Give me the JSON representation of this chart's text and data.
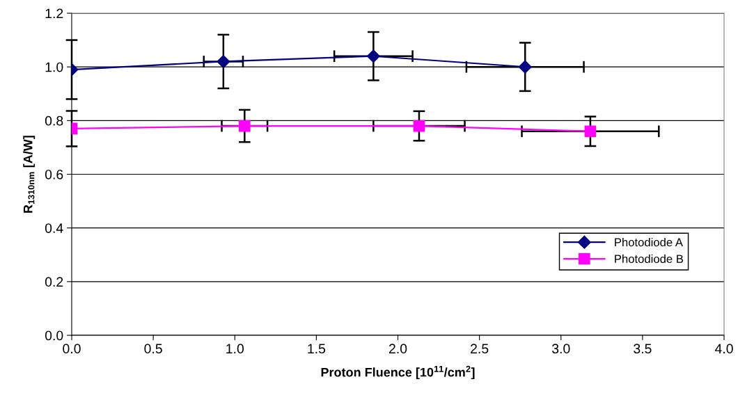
{
  "chart_data": {
    "type": "line",
    "xlabel": "Proton Fluence [10$^{11}$/cm$^{2}$]",
    "ylabel": "R$_{1310nm}$ [A/W]",
    "series": [
      {
        "name": "Photodiode A",
        "color": "#000080",
        "marker": "diamond",
        "x": [
          0.0,
          0.93,
          1.85,
          2.78
        ],
        "values": [
          0.99,
          1.02,
          1.04,
          1.0
        ],
        "errors": [
          0.11,
          0.1,
          0.09,
          0.09
        ],
        "xerrors": [
          null,
          0.12,
          0.24,
          0.36
        ]
      },
      {
        "name": "Photodiode B",
        "color": "#ff00ff",
        "marker": "square",
        "x": [
          0.0,
          1.06,
          2.13,
          3.18
        ],
        "values": [
          0.77,
          0.78,
          0.78,
          0.76
        ],
        "errors": [
          0.066,
          0.06,
          0.055,
          0.055
        ],
        "xerrors": [
          null,
          0.14,
          0.28,
          0.42
        ]
      }
    ],
    "xlim": [
      0.0,
      4.0
    ],
    "xticks": [
      {
        "value": 0.0,
        "label": "0.0"
      },
      0.5,
      {
        "value": 1.0,
        "label": "1.0"
      },
      1.5,
      {
        "value": 2.0,
        "label": "2.0"
      },
      2.5,
      {
        "value": 3.0,
        "label": "3.0"
      },
      3.5,
      {
        "value": 4.0,
        "label": "4.0"
      }
    ],
    "ylim": [
      0.0,
      1.2
    ],
    "yticks": [
      {
        "value": 0.0,
        "label": "0.0"
      },
      0.2,
      0.4,
      0.6,
      0.8,
      {
        "value": 1.0,
        "label": "1.0"
      },
      1.2
    ],
    "grid": "y",
    "legend": "right",
    "line_style": "solid"
  }
}
